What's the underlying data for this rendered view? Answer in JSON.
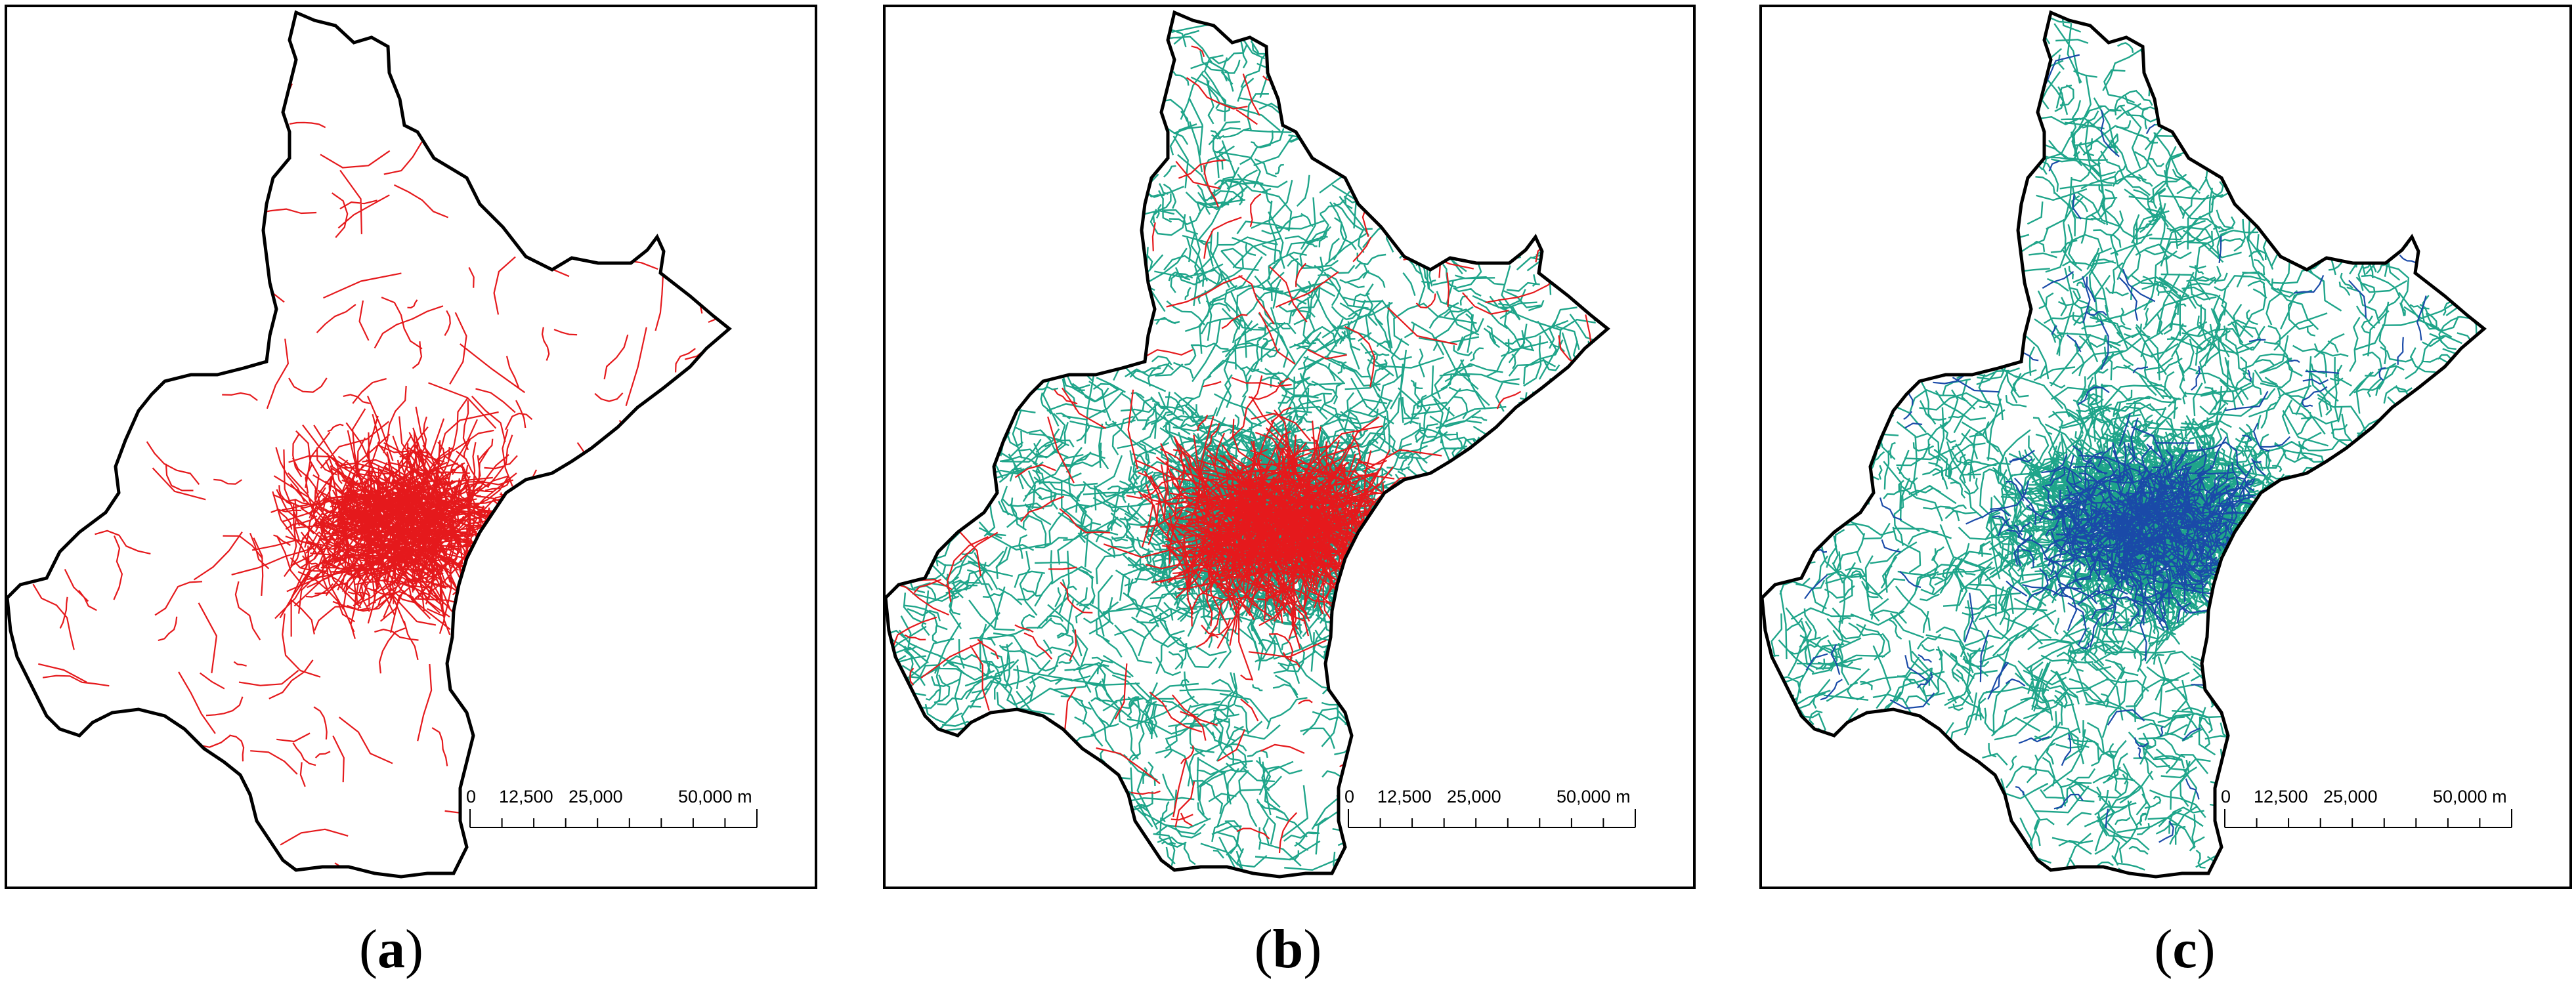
{
  "panels": [
    {
      "id": "a",
      "caption_letter": "a",
      "layers": [
        "red"
      ]
    },
    {
      "id": "b",
      "caption_letter": "b",
      "layers": [
        "teal",
        "red"
      ]
    },
    {
      "id": "c",
      "caption_letter": "c",
      "layers": [
        "teal",
        "blue"
      ]
    }
  ],
  "scale_bar": {
    "labels": [
      "0",
      "12,500",
      "25,000",
      "50,000"
    ],
    "unit": "m"
  },
  "caption_format": {
    "open": "(",
    "close": ")"
  },
  "colors": {
    "boundary": "#000000",
    "red_network": "#e5191c",
    "teal_network": "#1fa58a",
    "blue_network": "#1a4aa8"
  }
}
